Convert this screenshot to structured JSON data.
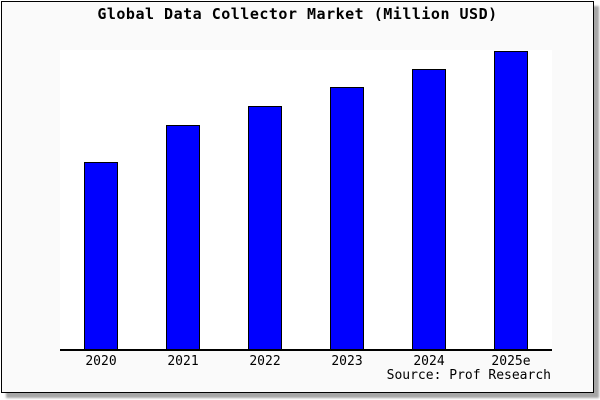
{
  "title": "Global Data Collector Market (Million USD)",
  "source": "Source: Prof Research",
  "colors": {
    "bar_fill": "#0000FF",
    "bar_border": "#000000",
    "figure_background": "#fafafa",
    "plot_background": "#ffffff",
    "axis": "#000000",
    "panel_border": "#000000",
    "shadow": "#a6a6a6"
  },
  "chart_data": {
    "type": "bar",
    "title": "Global Data Collector Market (Million USD)",
    "categories": [
      "2020",
      "2021",
      "2022",
      "2023",
      "2024",
      "2025e"
    ],
    "values": [
      62.7,
      75.0,
      81.3,
      87.7,
      93.7,
      99.7
    ],
    "value_note": "y-axis has no tick labels in source image; values are relative bar heights as percent of plot height",
    "xlabel": "",
    "ylabel": "",
    "ylim": [
      0,
      100
    ],
    "grid": false,
    "legend": false,
    "annotations": [
      "Source: Prof Research"
    ]
  }
}
